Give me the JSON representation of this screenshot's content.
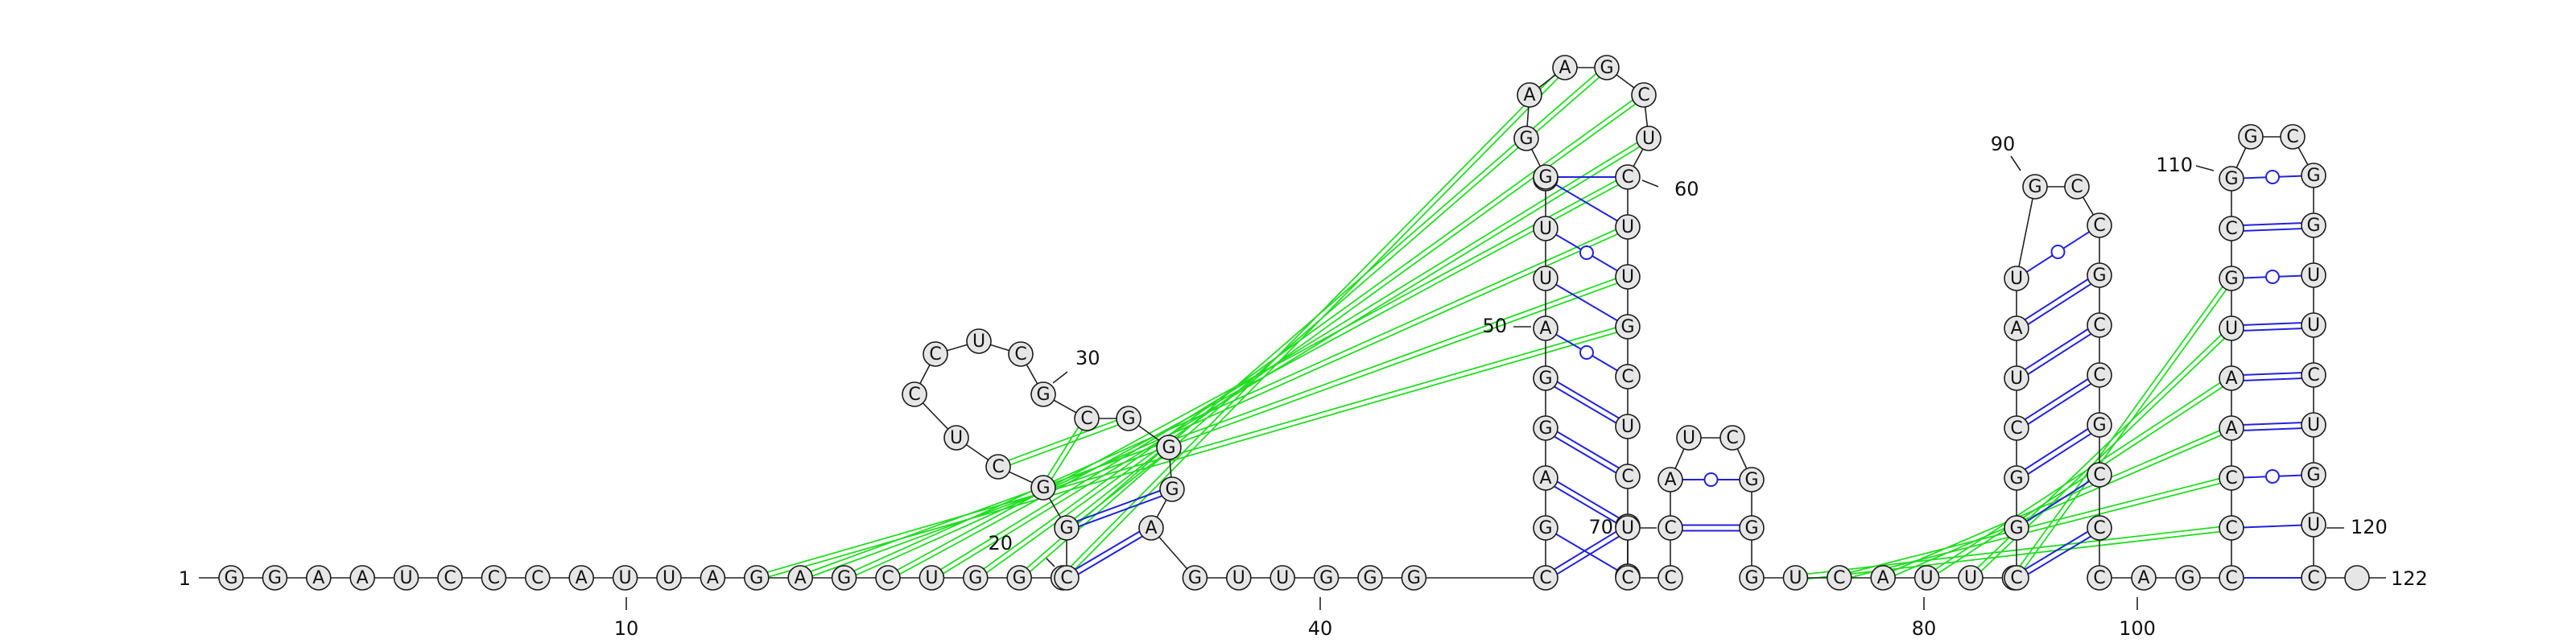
{
  "sequence": "GGAAUCCCAUUAGAGCUGGUCGGCUCCUCGCGGGAGUUGGGCGAGGAUUCGGAAGCUCUUGCUCGCUCCCAUCGGGUCAUUGCGGCUAUGCCGCCGCCCAGCCCAAUGCGGCGGUUCUGUC",
  "length": 122,
  "labels": {
    "start": "1",
    "end": "122",
    "axis": [
      "10",
      "40",
      "80",
      "100"
    ],
    "positions": [
      "20",
      "30",
      "50",
      "60",
      "70",
      "90",
      "110",
      "120"
    ]
  },
  "colors": {
    "canonical_pair": "#2222dd",
    "pseudoknot_pair": "#22dd22",
    "backbone": "#222222",
    "nucleotide_fill": "#e6e6e6"
  },
  "legend_note": ""
}
